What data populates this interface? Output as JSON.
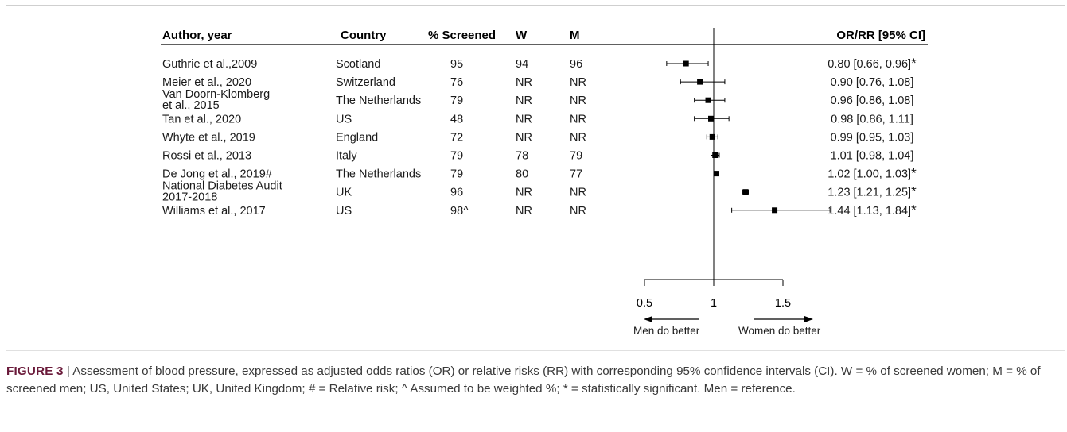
{
  "chart_data": {
    "type": "forest",
    "headers": {
      "study": "Author, year",
      "country": "Country",
      "screened": "% Screened",
      "w": "W",
      "m": "M",
      "estimate": "OR/RR [95% CI]"
    },
    "rows": [
      {
        "study": [
          "Guthrie et al.,2009"
        ],
        "country": "Scotland",
        "screened": "95",
        "w": "94",
        "m": "96",
        "est": 0.8,
        "lo": 0.66,
        "hi": 0.96,
        "label": "0.80 [0.66, 0.96]",
        "sig": "*"
      },
      {
        "study": [
          "Meier et al., 2020"
        ],
        "country": "Switzerland",
        "screened": "76",
        "w": "NR",
        "m": "NR",
        "est": 0.9,
        "lo": 0.76,
        "hi": 1.08,
        "label": "0.90 [0.76, 1.08]",
        "sig": ""
      },
      {
        "study": [
          "Van Doorn-Klomberg",
          "et al., 2015"
        ],
        "country": "The Netherlands",
        "screened": "79",
        "w": "NR",
        "m": "NR",
        "est": 0.96,
        "lo": 0.86,
        "hi": 1.08,
        "label": "0.96 [0.86, 1.08]",
        "sig": ""
      },
      {
        "study": [
          "Tan et al., 2020"
        ],
        "country": "US",
        "screened": "48",
        "w": "NR",
        "m": "NR",
        "est": 0.98,
        "lo": 0.86,
        "hi": 1.11,
        "label": "0.98 [0.86, 1.11]",
        "sig": ""
      },
      {
        "study": [
          "Whyte et al., 2019"
        ],
        "country": "England",
        "screened": "72",
        "w": "NR",
        "m": "NR",
        "est": 0.99,
        "lo": 0.95,
        "hi": 1.03,
        "label": "0.99 [0.95, 1.03]",
        "sig": ""
      },
      {
        "study": [
          "Rossi et al., 2013"
        ],
        "country": "Italy",
        "screened": "79",
        "w": "78",
        "m": "79",
        "est": 1.01,
        "lo": 0.98,
        "hi": 1.04,
        "label": "1.01 [0.98, 1.04]",
        "sig": ""
      },
      {
        "study": [
          "De Jong et al., 2019#"
        ],
        "country": "The Netherlands",
        "screened": "79",
        "w": "80",
        "m": "77",
        "est": 1.02,
        "lo": 1.0,
        "hi": 1.03,
        "label": "1.02 [1.00, 1.03]",
        "sig": "*"
      },
      {
        "study": [
          "National Diabetes Audit",
          "2017-2018"
        ],
        "country": "UK",
        "screened": "96",
        "w": "NR",
        "m": "NR",
        "est": 1.23,
        "lo": 1.21,
        "hi": 1.25,
        "label": "1.23 [1.21, 1.25]",
        "sig": "*"
      },
      {
        "study": [
          "Williams et al., 2017"
        ],
        "country": "US",
        "screened": "98^",
        "w": "NR",
        "m": "NR",
        "est": 1.44,
        "lo": 1.13,
        "hi": 1.84,
        "label": "1.44 [1.13, 1.84]",
        "sig": "*"
      }
    ],
    "reference_line": 1,
    "axis_ticks": [
      0.5,
      1,
      1.5
    ],
    "direction_labels": {
      "left": "Men do better",
      "right": "Women do better"
    }
  },
  "caption": {
    "label": "FIGURE 3",
    "separator": "|",
    "text": "Assessment of blood pressure, expressed as adjusted odds ratios (OR) or relative risks (RR) with corresponding 95% confidence intervals (CI). W = % of screened women; M = % of screened men; US, United States; UK, United Kingdom; # = Relative risk; ^ Assumed to be weighted %; * = statistically significant. Men = reference."
  }
}
